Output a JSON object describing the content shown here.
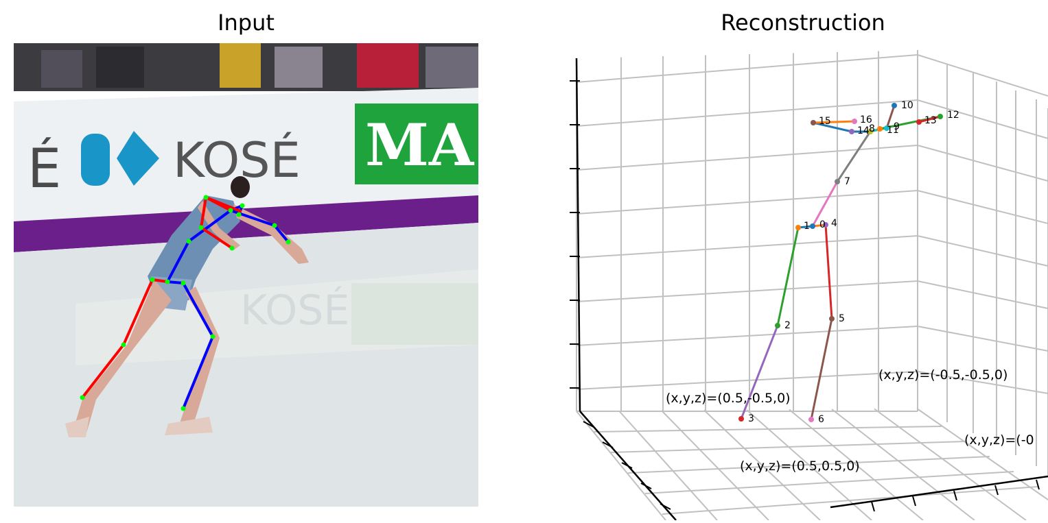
{
  "panels": {
    "input_title": "Input",
    "recon_title": "Reconstruction"
  },
  "banner": {
    "brand_left": "É",
    "brand_main": "KOSÉ",
    "brand_right": "MA",
    "reflection_text": "KOSÉ"
  },
  "colors": {
    "ice": "#dfe4e7",
    "board": "#eef1f3",
    "purple_stripe": "#6a1f8a",
    "green_sign": "#1fa33c",
    "kose_blue": "#1a95c8",
    "skeleton_red": "#ff0000",
    "skeleton_blue": "#0000ff",
    "joint_green": "#00ff00",
    "grid": "#c0c0c0"
  },
  "chart_data": {
    "type": "scatter",
    "projection": "3d",
    "grid": true,
    "axes_tick_labels": "hidden",
    "title": "Reconstruction",
    "corner_labels": [
      "(x,y,z)=(0.5,-0.5,0)",
      "(x,y,z)=(-0.5,-0.5,0)",
      "(x,y,z)=(0.5,0.5,0)",
      "(x,y,z)=(-0"
    ],
    "joints": [
      {
        "id": "0",
        "color": "#1f77b4"
      },
      {
        "id": "1",
        "color": "#ff7f0e"
      },
      {
        "id": "2",
        "color": "#2ca02c"
      },
      {
        "id": "3",
        "color": "#d62728"
      },
      {
        "id": "4",
        "color": "#9467bd"
      },
      {
        "id": "5",
        "color": "#8c564b"
      },
      {
        "id": "6",
        "color": "#e377c2"
      },
      {
        "id": "7",
        "color": "#7f7f7f"
      },
      {
        "id": "8",
        "color": "#bcbd22"
      },
      {
        "id": "9",
        "color": "#17becf"
      },
      {
        "id": "10",
        "color": "#1f77b4"
      },
      {
        "id": "11",
        "color": "#ff7f0e"
      },
      {
        "id": "12",
        "color": "#2ca02c"
      },
      {
        "id": "13",
        "color": "#d62728"
      },
      {
        "id": "14",
        "color": "#9467bd"
      },
      {
        "id": "15",
        "color": "#8c564b"
      },
      {
        "id": "16",
        "color": "#e377c2"
      }
    ],
    "bones": [
      {
        "from": "0",
        "to": "1",
        "color": "#1f77b4"
      },
      {
        "from": "1",
        "to": "2",
        "color": "#2ca02c"
      },
      {
        "from": "2",
        "to": "3",
        "color": "#9467bd"
      },
      {
        "from": "0",
        "to": "4",
        "color": "#ff7f0e"
      },
      {
        "from": "4",
        "to": "5",
        "color": "#d62728"
      },
      {
        "from": "5",
        "to": "6",
        "color": "#8c564b"
      },
      {
        "from": "0",
        "to": "7",
        "color": "#e377c2"
      },
      {
        "from": "7",
        "to": "8",
        "color": "#7f7f7f"
      },
      {
        "from": "8",
        "to": "9",
        "color": "#bcbd22"
      },
      {
        "from": "9",
        "to": "10",
        "color": "#8c564b"
      },
      {
        "from": "8",
        "to": "11",
        "color": "#17becf"
      },
      {
        "from": "11",
        "to": "12",
        "color": "#2ca02c"
      },
      {
        "from": "12",
        "to": "13",
        "color": "#d62728"
      },
      {
        "from": "8",
        "to": "14",
        "color": "#1f77b4"
      },
      {
        "from": "14",
        "to": "15",
        "color": "#1f77b4"
      },
      {
        "from": "15",
        "to": "16",
        "color": "#ff7f0e"
      }
    ]
  }
}
